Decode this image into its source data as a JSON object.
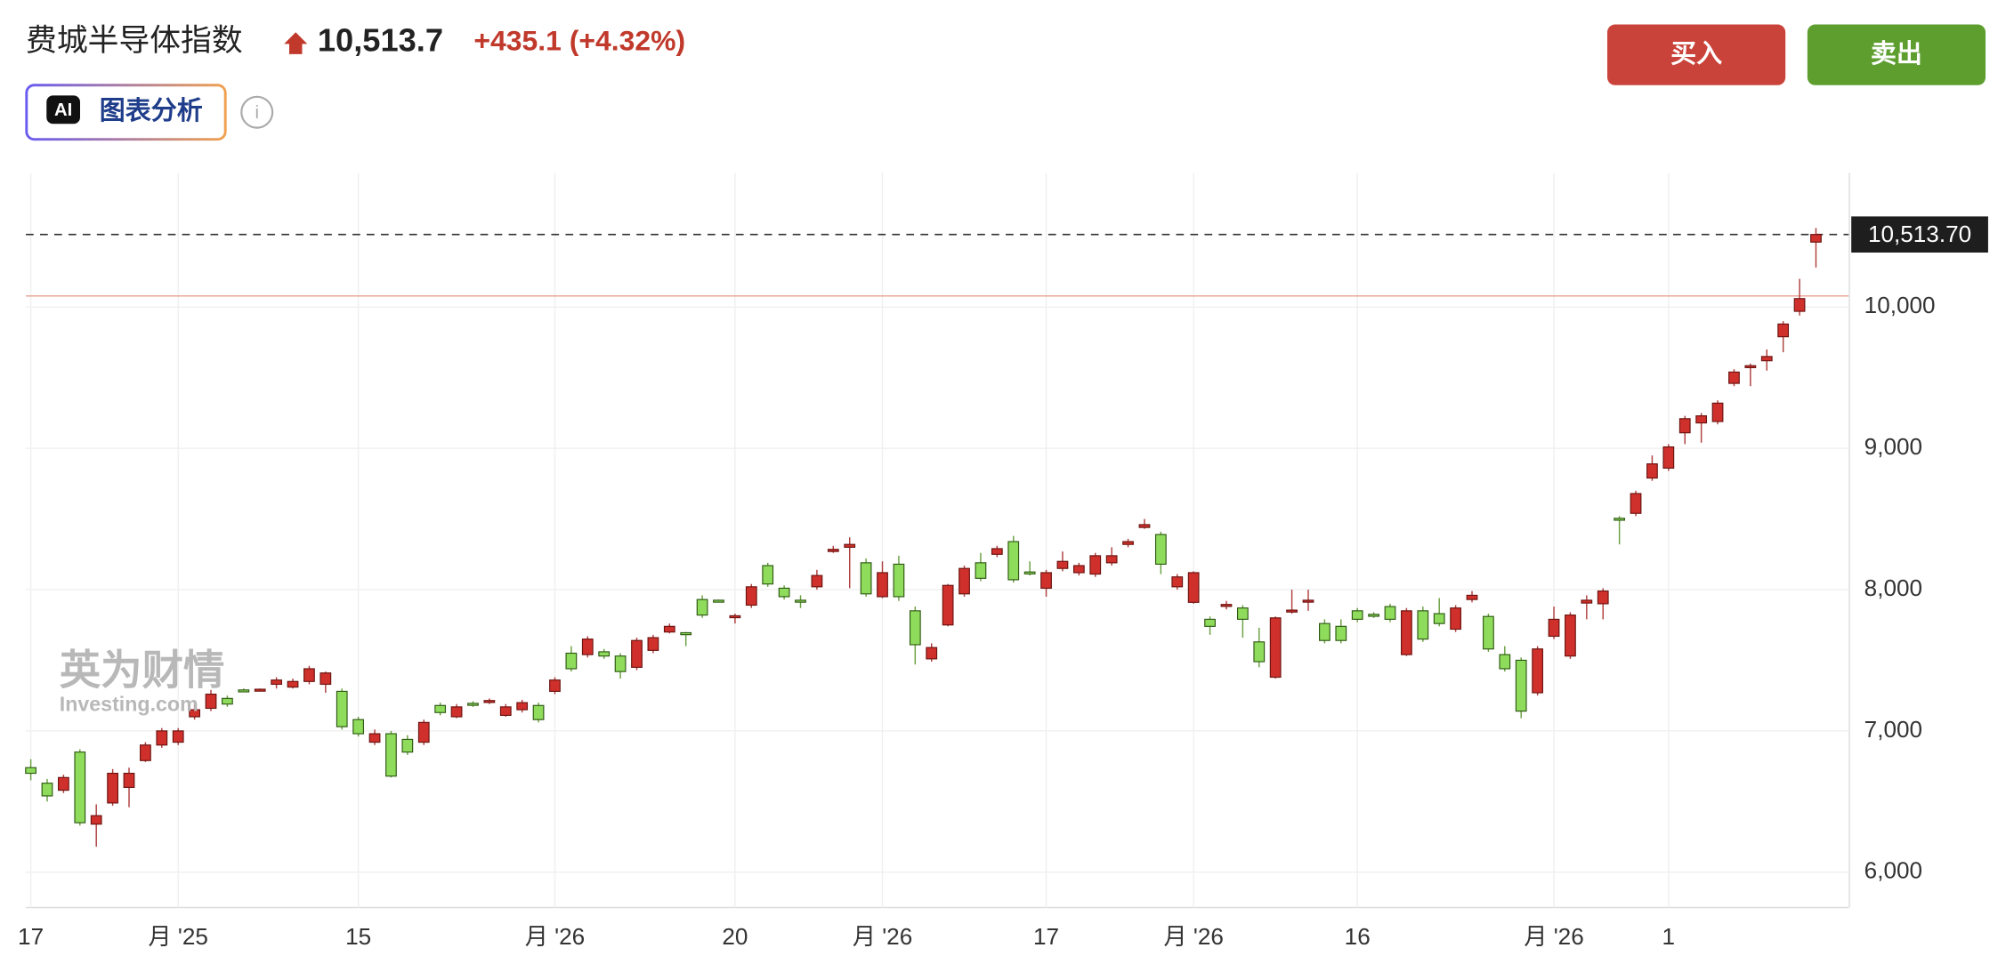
{
  "header": {
    "title": "费城半导体指数",
    "price": "10,513.7",
    "change": "+435.1 (+4.32%)",
    "ai_badge": "AI",
    "ai_button": "图表分析",
    "buy": "买入",
    "sell": "卖出",
    "watermark": "英为财情",
    "watermark_sub": "Investing.com"
  },
  "chart_data": {
    "type": "candlestick",
    "up_color": "#d0302b",
    "down_color": "#8fdc5c",
    "ylim": [
      5750,
      10950
    ],
    "yticks": [
      {
        "value": 6000,
        "label": "6,000"
      },
      {
        "value": 7000,
        "label": "7,000"
      },
      {
        "value": 8000,
        "label": "8,000"
      },
      {
        "value": 9000,
        "label": "9,000"
      },
      {
        "value": 10000,
        "label": "10,000"
      }
    ],
    "xlim": [
      -0.3,
      111
    ],
    "xticks": [
      {
        "value": 0,
        "label": "17"
      },
      {
        "value": 9,
        "label": "月 '25"
      },
      {
        "value": 20,
        "label": "15"
      },
      {
        "value": 32,
        "label": "月 '26"
      },
      {
        "value": 43,
        "label": "20"
      },
      {
        "value": 52,
        "label": "月 '26"
      },
      {
        "value": 62,
        "label": "17"
      },
      {
        "value": 71,
        "label": "月 '26"
      },
      {
        "value": 81,
        "label": "16"
      },
      {
        "value": 93,
        "label": "月 '26"
      },
      {
        "value": 100,
        "label": "1"
      }
    ],
    "grid": true,
    "prev_close": 10078.6,
    "last_label": {
      "value": 10513.7,
      "label": "10,513.70"
    },
    "open": [
      6740,
      6630,
      6580,
      6850,
      6340,
      6490,
      6600,
      6790,
      6900,
      6920,
      7100,
      7160,
      7230,
      7290,
      7290,
      7330,
      7310,
      7350,
      7330,
      7280,
      7080,
      6920,
      6980,
      6940,
      6920,
      7180,
      7100,
      7195,
      7205,
      7110,
      7150,
      7180,
      7280,
      7550,
      7540,
      7560,
      7530,
      7450,
      7570,
      7700,
      7695,
      7930,
      7925,
      7805,
      7890,
      8170,
      8010,
      7925,
      8020,
      8270,
      8300,
      8190,
      7950,
      8180,
      7850,
      7510,
      7750,
      7970,
      8190,
      8250,
      8340,
      8125,
      8010,
      8150,
      8120,
      8110,
      8190,
      8320,
      8440,
      8390,
      8020,
      7910,
      7790,
      7885,
      7870,
      7630,
      7380,
      7845,
      7915,
      7760,
      7740,
      7850,
      7825,
      7880,
      7540,
      7850,
      7830,
      7720,
      7930,
      7810,
      7540,
      7500,
      7270,
      7670,
      7530,
      7905,
      7900,
      8505,
      8540,
      8790,
      8860,
      9110,
      9180,
      9190,
      9460,
      9575,
      9620,
      9790,
      9970,
      10460
    ],
    "high": [
      6800,
      6660,
      6690,
      6870,
      6480,
      6730,
      6740,
      6920,
      7020,
      7020,
      7200,
      7290,
      7250,
      7300,
      7300,
      7380,
      7370,
      7460,
      7420,
      7300,
      7100,
      7010,
      7000,
      6970,
      7080,
      7200,
      7190,
      7210,
      7230,
      7190,
      7220,
      7200,
      7380,
      7600,
      7670,
      7580,
      7550,
      7660,
      7680,
      7760,
      7700,
      7960,
      7930,
      7830,
      8040,
      8190,
      8030,
      7960,
      8140,
      8310,
      8370,
      8220,
      8200,
      8240,
      7880,
      7620,
      8040,
      8170,
      8260,
      8310,
      8380,
      8200,
      8140,
      8270,
      8190,
      8260,
      8300,
      8360,
      8500,
      8410,
      8110,
      8130,
      7810,
      7920,
      7890,
      7730,
      7810,
      8000,
      8000,
      7790,
      7790,
      7870,
      7840,
      7900,
      7870,
      7880,
      7940,
      7890,
      7990,
      7830,
      7600,
      7520,
      7600,
      7880,
      7840,
      7960,
      8010,
      8520,
      8700,
      8950,
      9030,
      9230,
      9250,
      9340,
      9560,
      9600,
      9700,
      9900,
      10200,
      10560
    ],
    "low": [
      6650,
      6500,
      6560,
      6330,
      6180,
      6470,
      6460,
      6780,
      6880,
      6900,
      7080,
      7140,
      7170,
      7280,
      7280,
      7300,
      7300,
      7330,
      7270,
      7010,
      6960,
      6900,
      6670,
      6830,
      6900,
      7110,
      7090,
      7170,
      7190,
      7100,
      7130,
      7060,
      7260,
      7420,
      7520,
      7510,
      7370,
      7430,
      7550,
      7690,
      7600,
      7800,
      7910,
      7760,
      7870,
      8020,
      7930,
      7870,
      8000,
      8260,
      8010,
      7950,
      7940,
      7920,
      7470,
      7490,
      7740,
      7950,
      8060,
      8230,
      8050,
      8100,
      7950,
      8130,
      8100,
      8090,
      8170,
      8300,
      8430,
      8110,
      8000,
      7900,
      7680,
      7860,
      7660,
      7450,
      7370,
      7830,
      7850,
      7620,
      7620,
      7770,
      7800,
      7770,
      7530,
      7630,
      7740,
      7700,
      7910,
      7560,
      7420,
      7090,
      7250,
      7650,
      7510,
      7790,
      7790,
      8320,
      8520,
      8770,
      8840,
      9030,
      9040,
      9170,
      9440,
      9440,
      9550,
      9680,
      9940,
      10280
    ],
    "close": [
      6700,
      6540,
      6670,
      6350,
      6400,
      6700,
      6700,
      6900,
      7000,
      7000,
      7150,
      7260,
      7190,
      7285,
      7295,
      7360,
      7350,
      7440,
      7410,
      7030,
      6980,
      6980,
      6680,
      6850,
      7060,
      7130,
      7170,
      7185,
      7215,
      7170,
      7200,
      7080,
      7360,
      7440,
      7650,
      7530,
      7420,
      7640,
      7660,
      7740,
      7685,
      7820,
      7915,
      7815,
      8020,
      8040,
      7950,
      7915,
      8100,
      8285,
      8320,
      7970,
      8120,
      7950,
      7610,
      7590,
      8030,
      8150,
      8080,
      8290,
      8070,
      8115,
      8120,
      8200,
      8170,
      8240,
      8240,
      8340,
      8460,
      8180,
      8090,
      8120,
      7740,
      7895,
      7790,
      7490,
      7800,
      7855,
      7925,
      7640,
      7640,
      7790,
      7815,
      7790,
      7850,
      7650,
      7760,
      7870,
      7960,
      7580,
      7440,
      7140,
      7580,
      7790,
      7820,
      7925,
      7990,
      8495,
      8680,
      8890,
      9010,
      9210,
      9230,
      9320,
      9540,
      9585,
      9650,
      9880,
      10060,
      10513.7
    ]
  }
}
